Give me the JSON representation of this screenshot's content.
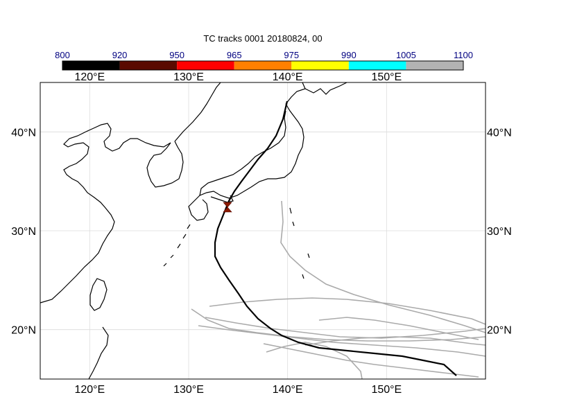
{
  "figure": {
    "title": "TC tracks  0001 20180824, 00"
  },
  "colorbar": {
    "levels": [
      "800",
      "920",
      "950",
      "965",
      "975",
      "990",
      "1005",
      "1100"
    ],
    "colors": [
      "#000000",
      "#5a0a00",
      "#ff0000",
      "#ff8000",
      "#ffff00",
      "#00ffff",
      "#b3b3b3"
    ],
    "label_color": "#000080"
  },
  "map": {
    "lon_range": [
      115,
      160
    ],
    "lat_range": [
      15,
      45
    ],
    "lon_ticks": [
      "120°E",
      "130°E",
      "140°E",
      "150°E"
    ],
    "lat_ticks": [
      "40°N",
      "30°N",
      "20°N"
    ],
    "gridlines": true,
    "coastline_color": "#000000"
  },
  "tracks": {
    "main_color": "#000000",
    "ensemble_color": "#aaaaaa",
    "marker_color": "#8b1a00",
    "marker_symbol": "hourglass-marker"
  }
}
